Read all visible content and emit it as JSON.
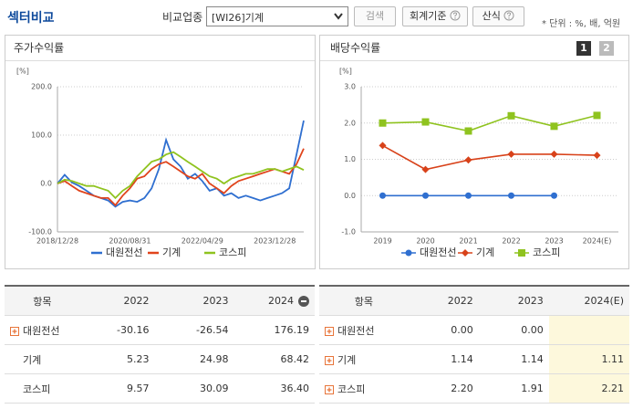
{
  "header": {
    "title": "섹터비교",
    "compare_label": "비교업종",
    "select": "[WI26]기계",
    "search": "검색",
    "accounting": "회계기준",
    "formula": "산식",
    "unit_note": "* 단위 : %, 배, 억원"
  },
  "chart_data": [
    {
      "type": "line",
      "title": "주가수익률",
      "unit": "[%]",
      "categories": [
        "2018/12/28",
        null,
        null,
        null,
        null,
        null,
        null,
        null,
        null,
        null,
        "2020/08/31",
        null,
        null,
        null,
        null,
        null,
        null,
        null,
        null,
        null,
        "2022/04/29",
        null,
        null,
        null,
        null,
        null,
        null,
        null,
        null,
        null,
        "2023/12/28",
        null,
        null,
        null,
        null
      ],
      "ylim": [
        -100,
        200
      ],
      "yticks": [
        {
          "value": 200,
          "label": "200.0"
        },
        {
          "value": 100,
          "label": "100.0"
        },
        {
          "value": 0,
          "label": "0.0"
        },
        {
          "value": -100,
          "label": "-100.0"
        }
      ],
      "grid": true,
      "series": [
        {
          "name": "대원전선",
          "color": "#2f6fd0",
          "values": [
            0,
            18,
            2,
            -5,
            -15,
            -25,
            -30,
            -35,
            -48,
            -38,
            -35,
            -38,
            -30,
            -10,
            30,
            90,
            50,
            35,
            10,
            20,
            5,
            -15,
            -10,
            -25,
            -20,
            -30,
            -25,
            -30,
            -35,
            -30,
            -25,
            -20,
            -10,
            60,
            130
          ]
        },
        {
          "name": "기계",
          "color": "#e0441c",
          "values": [
            0,
            5,
            -5,
            -15,
            -20,
            -25,
            -30,
            -30,
            -45,
            -25,
            -10,
            10,
            15,
            30,
            40,
            45,
            35,
            25,
            15,
            10,
            20,
            0,
            -10,
            -20,
            -5,
            5,
            10,
            15,
            20,
            25,
            30,
            25,
            20,
            40,
            72
          ]
        },
        {
          "name": "코스피",
          "color": "#8fc31f",
          "values": [
            0,
            8,
            5,
            0,
            -5,
            -5,
            -10,
            -15,
            -30,
            -15,
            -5,
            15,
            30,
            45,
            50,
            60,
            65,
            55,
            45,
            35,
            25,
            15,
            10,
            0,
            10,
            15,
            20,
            20,
            25,
            30,
            30,
            25,
            30,
            35,
            28
          ]
        }
      ]
    },
    {
      "type": "line",
      "title": "배당수익률",
      "unit": "[%]",
      "pages": [
        "1",
        "2"
      ],
      "categories": [
        "2019",
        "2020",
        "2021",
        "2022",
        "2023",
        "2024(E)"
      ],
      "ylim": [
        -1,
        3
      ],
      "yticks": [
        {
          "value": 3,
          "label": "3.0"
        },
        {
          "value": 2,
          "label": "2.0"
        },
        {
          "value": 1,
          "label": "1.0"
        },
        {
          "value": 0,
          "label": "0.0"
        },
        {
          "value": -1,
          "label": "-1.0"
        }
      ],
      "grid": true,
      "series": [
        {
          "name": "대원전선",
          "color": "#2f6fd0",
          "marker": "circle",
          "values": [
            0,
            0,
            0,
            0,
            0,
            null
          ]
        },
        {
          "name": "기계",
          "color": "#d8421a",
          "marker": "diamond",
          "values": [
            1.38,
            0.72,
            0.98,
            1.14,
            1.14,
            1.11
          ]
        },
        {
          "name": "코스피",
          "color": "#8fc31f",
          "marker": "square",
          "values": [
            2.0,
            2.03,
            1.78,
            2.2,
            1.91,
            2.21
          ]
        }
      ]
    }
  ],
  "tables": [
    {
      "headers": [
        "항목",
        "2022",
        "2023",
        "2024"
      ],
      "rows": [
        {
          "name": "대원전선",
          "expand": true,
          "values": [
            "-30.16",
            "-26.54",
            "176.19"
          ]
        },
        {
          "name": "기계",
          "expand": false,
          "values": [
            "5.23",
            "24.98",
            "68.42"
          ]
        },
        {
          "name": "코스피",
          "expand": false,
          "values": [
            "9.57",
            "30.09",
            "36.40"
          ]
        }
      ]
    },
    {
      "headers": [
        "항목",
        "2022",
        "2023",
        "2024(E)"
      ],
      "rows": [
        {
          "name": "대원전선",
          "expand": true,
          "values": [
            "0.00",
            "0.00",
            null
          ]
        },
        {
          "name": "기계",
          "expand": true,
          "values": [
            "1.14",
            "1.14",
            "1.11"
          ]
        },
        {
          "name": "코스피",
          "expand": true,
          "values": [
            "2.20",
            "1.91",
            "2.21"
          ]
        }
      ]
    }
  ]
}
